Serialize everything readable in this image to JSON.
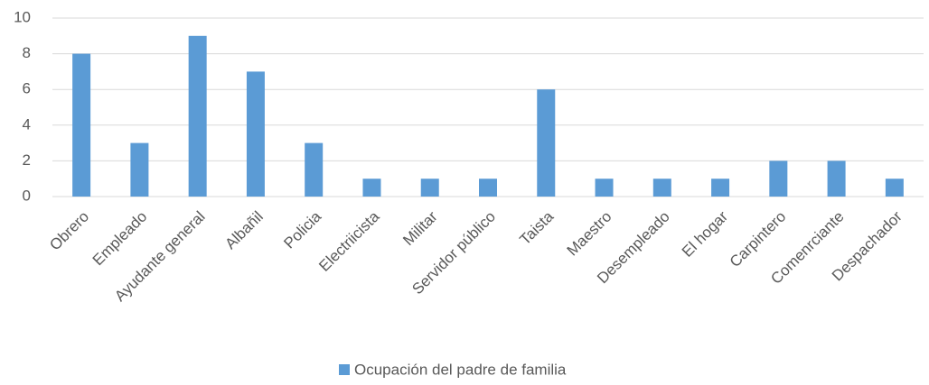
{
  "chart_data": {
    "type": "bar",
    "categories": [
      "Obrero",
      "Empleado",
      "Ayudante general",
      "Albañil",
      "Policia",
      "Electriicista",
      "Militar",
      "Servidor público",
      "Taista",
      "Maestro",
      "Desempleado",
      "El hogar",
      "Carpintero",
      "Comenrciante",
      "Despachador"
    ],
    "series": [
      {
        "name": "Ocupación del padre de familia",
        "color": "#5b9bd5",
        "values": [
          8,
          3,
          9,
          7,
          3,
          1,
          1,
          1,
          6,
          1,
          1,
          1,
          2,
          2,
          1
        ]
      }
    ],
    "ylim": [
      0,
      10
    ],
    "yticks": [
      0,
      2,
      4,
      6,
      8,
      10
    ],
    "grid": true,
    "legend": "bottom"
  }
}
